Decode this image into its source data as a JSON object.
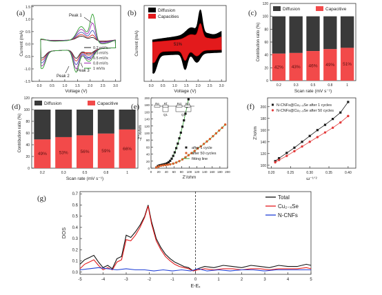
{
  "chart_data": [
    {
      "id": "a",
      "panel_label": "(a)",
      "type": "line",
      "xlabel": "Voltage (V)",
      "ylabel": "Current (mA)",
      "xlim": [
        -0.3,
        3.2
      ],
      "ylim": [
        -1.5,
        1.55
      ],
      "xticks": [
        "0.0",
        "0.5",
        "1.0",
        "1.5",
        "2.0",
        "2.5",
        "3.0"
      ],
      "yticks": [
        "-1.5",
        "-1.0",
        "-0.5",
        "0.0",
        "0.5",
        "1.0",
        "1.5"
      ],
      "legend": [
        "0.2 mV/s",
        "0.3 mV/s",
        "0.5 mV/s",
        "0.8 mV/s",
        "1 mV/s"
      ],
      "colors": [
        "#222222",
        "#d62728",
        "#3f51b5",
        "#9c27b0",
        "#2e9e2e"
      ],
      "annotations": [
        "Peak 1",
        "Peak 2",
        "Peak 3"
      ],
      "scales": [
        0.38,
        0.5,
        0.66,
        0.84,
        1.0
      ]
    },
    {
      "id": "b",
      "panel_label": "(b)",
      "type": "area",
      "xlabel": "Voltage (V)",
      "ylabel": "Current (mA)",
      "xlim": [
        -0.3,
        3.2
      ],
      "xticks": [
        "0.0",
        "0.5",
        "1.0",
        "1.5",
        "2.0",
        "2.5",
        "3.0"
      ],
      "legend": [
        "Diffusion",
        "Capacities"
      ],
      "colors": [
        "#000000",
        "#e31a1c"
      ],
      "inner_label": "51%"
    },
    {
      "id": "c",
      "panel_label": "(c)",
      "type": "bar",
      "xlabel": "Scan rate (mV s⁻¹)",
      "ylabel": "Contribution ratio (%)",
      "categories": [
        "0.2",
        "0.3",
        "0.5",
        "0.8",
        "1"
      ],
      "series": [
        {
          "name": "Capacitive",
          "values": [
            42,
            43,
            46,
            49,
            51
          ]
        },
        {
          "name": "Diffusion",
          "values": [
            58,
            57,
            54,
            51,
            49
          ]
        }
      ],
      "value_labels": [
        "42%",
        "43%",
        "46%",
        "49%",
        "51%"
      ],
      "ylim": [
        0,
        120
      ],
      "yticks": [
        "0",
        "20",
        "40",
        "60",
        "80",
        "100",
        "120"
      ],
      "colors": {
        "Capacitive": "#f24a4a",
        "Diffusion": "#3a3a3a"
      }
    },
    {
      "id": "d",
      "panel_label": "(d)",
      "type": "bar",
      "xlabel": "Scan rate (mV s⁻¹)",
      "ylabel": "Contribution ratio (%)",
      "categories": [
        "0.2",
        "0.3",
        "0.5",
        "0.8",
        "1"
      ],
      "series": [
        {
          "name": "Capacitive",
          "values": [
            49,
            53,
            56,
            59,
            66
          ]
        },
        {
          "name": "Diffusion",
          "values": [
            51,
            47,
            44,
            41,
            34
          ]
        }
      ],
      "value_labels": [
        "49%",
        "53%",
        "56%",
        "59%",
        "66%"
      ],
      "ylim": [
        0,
        120
      ],
      "yticks": [
        "0",
        "20",
        "40",
        "60",
        "80",
        "100",
        "120"
      ],
      "colors": {
        "Capacitive": "#f24a4a",
        "Diffusion": "#3a3a3a"
      }
    },
    {
      "id": "e",
      "panel_label": "(e)",
      "type": "scatter",
      "xlabel": "Z'/ohm",
      "ylabel": "-Z''/ohm",
      "xlim": [
        0,
        200
      ],
      "ylim": [
        0,
        200
      ],
      "xticks": [
        "0",
        "20",
        "40",
        "60",
        "80",
        "100",
        "120",
        "140",
        "160",
        "180",
        "200"
      ],
      "yticks": [
        "0",
        "20",
        "40",
        "60",
        "80",
        "100",
        "120",
        "140",
        "160",
        "180",
        "200"
      ],
      "legend": [
        "after 1 cycle",
        "after 50 cycles",
        "fitting line"
      ],
      "circuit_labels": [
        "Re",
        "Rf",
        "Rct",
        "W1",
        "Q1",
        "Q2"
      ],
      "colors": [
        "#1a1a1a",
        "#d95f2a",
        "#2e9e2e"
      ],
      "series": [
        {
          "name": "after 1 cycle",
          "x": [
            14,
            18,
            22,
            26,
            30,
            34,
            38,
            42,
            46,
            50,
            54,
            58,
            62,
            66,
            70,
            74,
            78,
            82,
            86,
            90,
            94,
            98
          ],
          "y": [
            2,
            6,
            8,
            9,
            10,
            11,
            12,
            14,
            17,
            21,
            27,
            35,
            45,
            57,
            70,
            85,
            101,
            118,
            136,
            155,
            175,
            196
          ]
        },
        {
          "name": "after 50 cycles",
          "x": [
            14,
            20,
            26,
            32,
            38,
            44,
            50,
            58,
            66,
            74,
            82,
            90,
            98,
            106,
            114,
            122,
            130,
            138,
            146,
            154,
            162,
            170,
            178,
            186,
            194
          ],
          "y": [
            2,
            5,
            7,
            8,
            9,
            10,
            11,
            13,
            16,
            20,
            25,
            31,
            37,
            43,
            49,
            56,
            62,
            69,
            76,
            83,
            91,
            99,
            107,
            115,
            124
          ]
        }
      ]
    },
    {
      "id": "f",
      "panel_label": "(f)",
      "type": "scatter",
      "xlabel": "ω⁻¹ᐟ²",
      "ylabel": "Z'/ohm",
      "xlim": [
        0.19,
        0.42
      ],
      "ylim": [
        95,
        215
      ],
      "xticks": [
        "0.20",
        "0.25",
        "0.30",
        "0.35",
        "0.40"
      ],
      "yticks": [
        "100",
        "120",
        "140",
        "160",
        "180",
        "200"
      ],
      "legend": [
        "N-CNFs@Cu₂₋ₓSe after 1 cycles",
        "N-CNFs@Cu₂₋ₓSe after 50 cycles"
      ],
      "colors": [
        "#1a1a1a",
        "#e33b3b"
      ],
      "series": [
        {
          "name": "N-CNFs@Cu₂₋ₓSe after 1 cycles",
          "x": [
            0.21,
            0.22,
            0.24,
            0.26,
            0.28,
            0.3,
            0.32,
            0.34,
            0.36,
            0.38,
            0.4
          ],
          "y": [
            107,
            112,
            121,
            130,
            140,
            150,
            160,
            169,
            179,
            190,
            208
          ]
        },
        {
          "name": "N-CNFs@Cu₂₋ₓSe after 50 cycles",
          "x": [
            0.21,
            0.22,
            0.24,
            0.26,
            0.28,
            0.3,
            0.32,
            0.34,
            0.36,
            0.38,
            0.4
          ],
          "y": [
            105,
            109,
            116,
            124,
            132,
            140,
            148,
            156,
            164,
            173,
            184
          ]
        }
      ]
    },
    {
      "id": "g",
      "panel_label": "(g)",
      "type": "line",
      "xlabel": "E-Eₓ",
      "ylabel": "DOS",
      "xlim": [
        -5,
        5
      ],
      "ylim": [
        -0.02,
        0.72
      ],
      "xticks": [
        "-5",
        "-4",
        "-3",
        "-2",
        "-1",
        "0",
        "1",
        "2",
        "3",
        "4",
        "5"
      ],
      "yticks": [
        "0.0",
        "0.1",
        "0.2",
        "0.3",
        "0.4",
        "0.5",
        "0.6",
        "0.7"
      ],
      "legend": [
        "Total",
        "Cu₂₋ₓSe",
        "N-CNFs"
      ],
      "colors": [
        "#111111",
        "#e31a1c",
        "#1f3fd6"
      ],
      "series": [
        {
          "name": "Total",
          "x": [
            -5,
            -4.8,
            -4.6,
            -4.4,
            -4.2,
            -4.0,
            -3.8,
            -3.6,
            -3.4,
            -3.2,
            -3.0,
            -2.8,
            -2.6,
            -2.4,
            -2.2,
            -2.05,
            -1.9,
            -1.7,
            -1.5,
            -1.3,
            -1.1,
            -0.9,
            -0.7,
            -0.5,
            -0.3,
            -0.1,
            0.1,
            0.4,
            0.8,
            1.2,
            1.6,
            2.0,
            2.4,
            2.8,
            3.2,
            3.6,
            4.0,
            4.4,
            4.8,
            5.0
          ],
          "y": [
            0.07,
            0.11,
            0.13,
            0.15,
            0.09,
            0.04,
            0.06,
            0.03,
            0.12,
            0.14,
            0.33,
            0.31,
            0.36,
            0.42,
            0.5,
            0.6,
            0.45,
            0.3,
            0.22,
            0.16,
            0.12,
            0.09,
            0.07,
            0.05,
            0.04,
            0.01,
            0.03,
            0.05,
            0.04,
            0.06,
            0.05,
            0.04,
            0.06,
            0.05,
            0.04,
            0.06,
            0.05,
            0.05,
            0.07,
            0.06
          ]
        },
        {
          "name": "Cu₂₋ₓSe",
          "x": [
            -5,
            -4.8,
            -4.6,
            -4.4,
            -4.2,
            -4.0,
            -3.8,
            -3.6,
            -3.4,
            -3.2,
            -3.0,
            -2.8,
            -2.6,
            -2.4,
            -2.2,
            -2.05,
            -1.9,
            -1.7,
            -1.5,
            -1.3,
            -1.1,
            -0.9,
            -0.7,
            -0.5,
            -0.3,
            -0.1,
            0.1,
            0.4,
            0.8,
            1.2,
            1.6,
            2.0,
            2.4,
            2.8,
            3.2,
            3.6,
            4.0,
            4.4,
            4.8,
            5.0
          ],
          "y": [
            0.03,
            0.07,
            0.09,
            0.11,
            0.06,
            0.02,
            0.04,
            0.02,
            0.09,
            0.11,
            0.29,
            0.28,
            0.33,
            0.4,
            0.49,
            0.59,
            0.43,
            0.28,
            0.2,
            0.14,
            0.1,
            0.07,
            0.05,
            0.04,
            0.03,
            0.01,
            0.02,
            0.03,
            0.02,
            0.03,
            0.03,
            0.02,
            0.03,
            0.03,
            0.02,
            0.03,
            0.03,
            0.03,
            0.04,
            0.03
          ]
        },
        {
          "name": "N-CNFs",
          "x": [
            -5,
            -4.6,
            -4.2,
            -3.8,
            -3.4,
            -3.0,
            -2.6,
            -2.2,
            -1.8,
            -1.4,
            -1.0,
            -0.6,
            -0.2,
            0.1,
            0.5,
            1.0,
            1.5,
            2.0,
            2.5,
            3.0,
            3.5,
            4.0,
            4.5,
            5.0
          ],
          "y": [
            0.02,
            0.03,
            0.04,
            0.03,
            0.02,
            0.03,
            0.02,
            0.02,
            0.01,
            0.02,
            0.01,
            0.02,
            0.01,
            0.03,
            0.01,
            0.02,
            0.01,
            0.02,
            0.02,
            0.01,
            0.02,
            0.02,
            0.02,
            0.02
          ]
        }
      ]
    }
  ]
}
